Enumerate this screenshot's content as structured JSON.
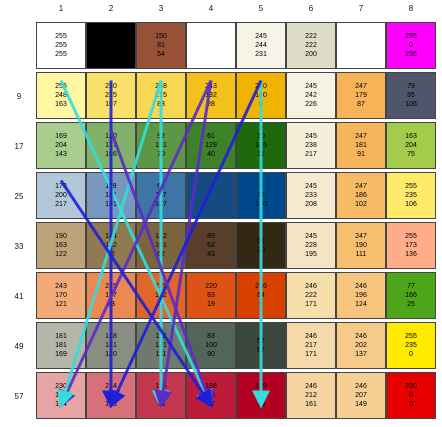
{
  "columns": [
    "1",
    "2",
    "3",
    "4",
    "5",
    "6",
    "7",
    "8"
  ],
  "rows": [
    {
      "label": "",
      "cells": [
        {
          "rgb": [
            "255",
            "255",
            "255"
          ],
          "hex": "#ffffff",
          "ink": "#000000"
        },
        {
          "rgb": [
            "",
            "",
            ""
          ],
          "hex": "#000000",
          "ink": "#ffffff"
        },
        {
          "rgb": [
            "150",
            "81",
            "54"
          ],
          "hex": "#965136",
          "ink": "#000000"
        },
        {
          "rgb": [
            "",
            "",
            ""
          ],
          "hex": "#ffffff",
          "ink": "#000000"
        },
        {
          "rgb": [
            "245",
            "244",
            "231"
          ],
          "hex": "#f5f4e7",
          "ink": "#000000"
        },
        {
          "rgb": [
            "222",
            "222",
            "200"
          ],
          "hex": "#dedec8",
          "ink": "#000000"
        },
        {
          "rgb": [
            "",
            "",
            ""
          ],
          "hex": "#ffffff",
          "ink": "#000000"
        },
        {
          "rgb": [
            "255",
            "0",
            "255"
          ],
          "hex": "#ff00ff",
          "ink": "#000000"
        }
      ]
    },
    {
      "label": "9",
      "cells": [
        {
          "rgb": [
            "255",
            "248",
            "163"
          ],
          "hex": "#fff8a3",
          "ink": "#000000"
        },
        {
          "rgb": [
            "250",
            "225",
            "107"
          ],
          "hex": "#fae16b",
          "ink": "#000000"
        },
        {
          "rgb": [
            "248",
            "215",
            "83"
          ],
          "hex": "#f8d753",
          "ink": "#000000"
        },
        {
          "rgb": [
            "243",
            "192",
            "28"
          ],
          "hex": "#f3c01c",
          "ink": "#000000"
        },
        {
          "rgb": [
            "240",
            "180",
            "0"
          ],
          "hex": "#f0b400",
          "ink": "#000000"
        },
        {
          "rgb": [
            "245",
            "242",
            "226"
          ],
          "hex": "#f5f2e2",
          "ink": "#000000"
        },
        {
          "rgb": [
            "247",
            "179",
            "87"
          ],
          "hex": "#f7b357",
          "ink": "#000000"
        },
        {
          "rgb": [
            "79",
            "85",
            "106"
          ],
          "hex": "#4f556a",
          "ink": "#000000"
        }
      ]
    },
    {
      "label": "17",
      "cells": [
        {
          "rgb": [
            "169",
            "204",
            "143"
          ],
          "hex": "#a9cc8f",
          "ink": "#000000"
        },
        {
          "rgb": [
            "130",
            "177",
            "106"
          ],
          "hex": "#82b16a",
          "ink": "#000000"
        },
        {
          "rgb": [
            "92",
            "151",
            "70"
          ],
          "hex": "#5c9746",
          "ink": "#000000"
        },
        {
          "rgb": [
            "61",
            "129",
            "40"
          ],
          "hex": "#3d8128",
          "ink": "#000000"
        },
        {
          "rgb": [
            "30",
            "105",
            "11"
          ],
          "hex": "#1e690b",
          "ink": "#000000"
        },
        {
          "rgb": [
            "245",
            "238",
            "217"
          ],
          "hex": "#f5eed9",
          "ink": "#000000"
        },
        {
          "rgb": [
            "247",
            "181",
            "91"
          ],
          "hex": "#f7b55b",
          "ink": "#000000"
        },
        {
          "rgb": [
            "163",
            "204",
            "75"
          ],
          "hex": "#a3cc4b",
          "ink": "#000000"
        }
      ]
    },
    {
      "label": "25",
      "cells": [
        {
          "rgb": [
            "178",
            "200",
            "217"
          ],
          "hex": "#b2c8d9",
          "ink": "#000000"
        },
        {
          "rgb": [
            "119",
            "151",
            "191"
          ],
          "hex": "#7797bf",
          "ink": "#000000"
        },
        {
          "rgb": [
            "62",
            "117",
            "167"
          ],
          "hex": "#3e75a7",
          "ink": "#000000"
        },
        {
          "rgb": [
            "",
            "",
            ""
          ],
          "hex": "#144b82",
          "ink": "#000000"
        },
        {
          "rgb": [
            "0",
            "72",
            "140"
          ],
          "hex": "#00488c",
          "ink": "#000000"
        },
        {
          "rgb": [
            "245",
            "233",
            "208"
          ],
          "hex": "#f5e9d0",
          "ink": "#000000"
        },
        {
          "rgb": [
            "247",
            "186",
            "102"
          ],
          "hex": "#f7ba66",
          "ink": "#000000"
        },
        {
          "rgb": [
            "255",
            "235",
            "106"
          ],
          "hex": "#ffeb6a",
          "ink": "#000000"
        }
      ]
    },
    {
      "label": "33",
      "cells": [
        {
          "rgb": [
            "190",
            "163",
            "122"
          ],
          "hex": "#bea37a",
          "ink": "#000000"
        },
        {
          "rgb": [
            "144",
            "122",
            "82"
          ],
          "hex": "#907a52",
          "ink": "#000000"
        },
        {
          "rgb": [
            "122",
            "101",
            "62"
          ],
          "hex": "#7a653e",
          "ink": "#000000"
        },
        {
          "rgb": [
            "89",
            "62",
            "43"
          ],
          "hex": "#593e2b",
          "ink": "#000000"
        },
        {
          "rgb": [
            "51",
            "",
            "20"
          ],
          "hex": "#332814",
          "ink": "#000000"
        },
        {
          "rgb": [
            "245",
            "228",
            "195"
          ],
          "hex": "#f5e4c3",
          "ink": "#000000"
        },
        {
          "rgb": [
            "247",
            "190",
            "111"
          ],
          "hex": "#f7be6f",
          "ink": "#000000"
        },
        {
          "rgb": [
            "255",
            "173",
            "136"
          ],
          "hex": "#ffad88",
          "ink": "#000000"
        }
      ]
    },
    {
      "label": "41",
      "cells": [
        {
          "rgb": [
            "243",
            "170",
            "121"
          ],
          "hex": "#f3aa79",
          "ink": "#000000"
        },
        {
          "rgb": [
            "235",
            "137",
            "83"
          ],
          "hex": "#eb8953",
          "ink": "#000000"
        },
        {
          "rgb": [
            "225",
            "102",
            "42"
          ],
          "hex": "#e1662a",
          "ink": "#000000"
        },
        {
          "rgb": [
            "220",
            "83",
            "19"
          ],
          "hex": "#dc5313",
          "ink": "#000000"
        },
        {
          "rgb": [
            "216",
            "64",
            "0"
          ],
          "hex": "#d84000",
          "ink": "#000000"
        },
        {
          "rgb": [
            "246",
            "222",
            "171"
          ],
          "hex": "#f6deab",
          "ink": "#000000"
        },
        {
          "rgb": [
            "246",
            "196",
            "124"
          ],
          "hex": "#f6c47c",
          "ink": "#000000"
        },
        {
          "rgb": [
            "77",
            "166",
            "25"
          ],
          "hex": "#4da619",
          "ink": "#000000"
        }
      ]
    },
    {
      "label": "49",
      "cells": [
        {
          "rgb": [
            "181",
            "181",
            "169"
          ],
          "hex": "#b5b5a9",
          "ink": "#000000"
        },
        {
          "rgb": [
            "138",
            "141",
            "130"
          ],
          "hex": "#8a8d82",
          "ink": "#000000"
        },
        {
          "rgb": [
            "112",
            "121",
            "111"
          ],
          "hex": "#70796f",
          "ink": "#000000"
        },
        {
          "rgb": [
            "83",
            "100",
            "90"
          ],
          "hex": "#53645a",
          "ink": "#000000"
        },
        {
          "rgb": [
            "57",
            "",
            "67"
          ],
          "hex": "#39473f",
          "ink": "#000000"
        },
        {
          "rgb": [
            "246",
            "217",
            "171"
          ],
          "hex": "#f6d9ab",
          "ink": "#000000"
        },
        {
          "rgb": [
            "246",
            "202",
            "137"
          ],
          "hex": "#f6ca89",
          "ink": "#000000"
        },
        {
          "rgb": [
            "255",
            "235",
            "0"
          ],
          "hex": "#ffeb00",
          "ink": "#000000"
        }
      ]
    },
    {
      "label": "57",
      "cells": [
        {
          "rgb": [
            "230",
            "165",
            "164"
          ],
          "hex": "#e6a5a4",
          "ink": "#000000"
        },
        {
          "rgb": [
            "214",
            "112",
            "123"
          ],
          "hex": "#d6707b",
          "ink": "#000000"
        },
        {
          "rgb": [
            "196",
            "56",
            "79"
          ],
          "hex": "#c4384f",
          "ink": "#000000"
        },
        {
          "rgb": [
            "188",
            "28",
            "57"
          ],
          "hex": "#bc1c39",
          "ink": "#000000"
        },
        {
          "rgb": [
            "179",
            "0",
            "35"
          ],
          "hex": "#b30023",
          "ink": "#000000"
        },
        {
          "rgb": [
            "246",
            "212",
            "161"
          ],
          "hex": "#f6d4a1",
          "ink": "#000000"
        },
        {
          "rgb": [
            "246",
            "207",
            "149"
          ],
          "hex": "#f6cf95",
          "ink": "#000000"
        },
        {
          "rgb": [
            "230",
            "0",
            "0"
          ],
          "hex": "#e60000",
          "ink": "#000000"
        }
      ]
    }
  ],
  "arrow_colors": {
    "cyan": "#33dddd",
    "blue": "#1f1fd8",
    "purple": "#5a2cc8"
  },
  "arrows": [
    {
      "color": "cyan",
      "from": [
        1,
        1
      ],
      "to": [
        4,
        8
      ]
    },
    {
      "color": "blue",
      "from": [
        2,
        1
      ],
      "to": [
        2,
        8
      ]
    },
    {
      "color": "cyan",
      "from": [
        3,
        1
      ],
      "to": [
        3,
        8
      ]
    },
    {
      "color": "purple",
      "from": [
        4,
        1
      ],
      "to": [
        1,
        8
      ]
    },
    {
      "color": "purple",
      "from": [
        4,
        1
      ],
      "to": [
        3,
        8
      ]
    },
    {
      "color": "cyan",
      "from": [
        5,
        1
      ],
      "to": [
        5,
        8
      ]
    },
    {
      "color": "cyan",
      "from": [
        3,
        1
      ],
      "to": [
        1,
        8
      ]
    },
    {
      "color": "blue",
      "from": [
        5,
        1
      ],
      "to": [
        2,
        8
      ]
    },
    {
      "color": "purple",
      "from": [
        2,
        2
      ],
      "to": [
        4,
        8
      ]
    },
    {
      "color": "blue",
      "from": [
        1,
        3
      ],
      "to": [
        4,
        8
      ]
    }
  ]
}
